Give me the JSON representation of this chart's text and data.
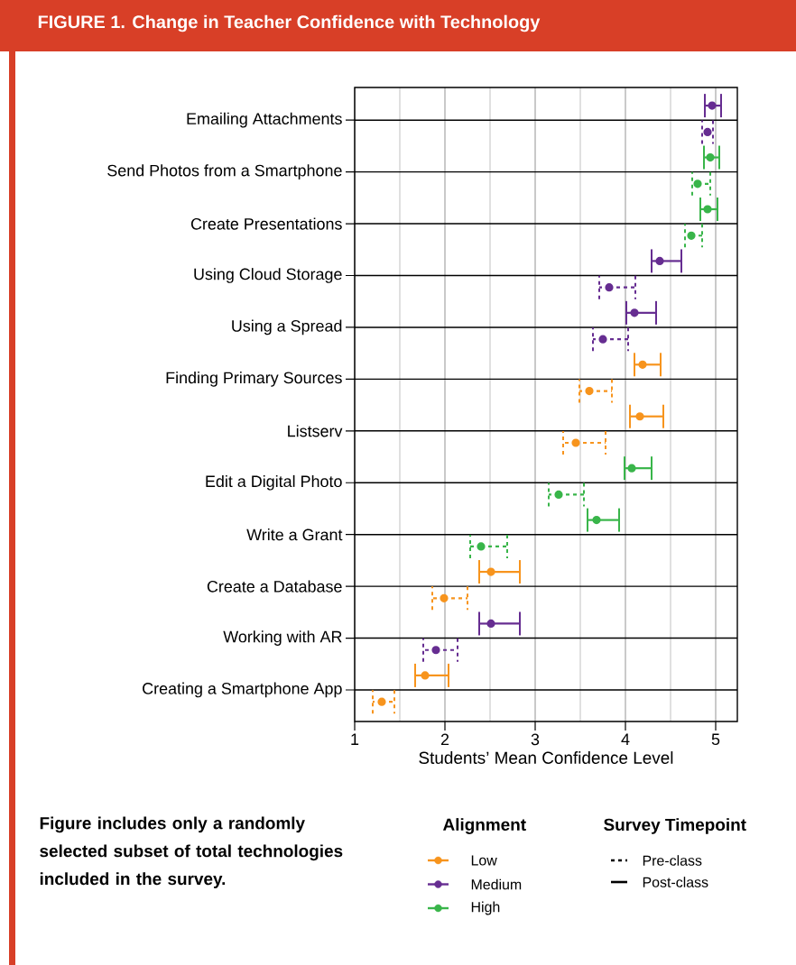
{
  "chart_data": {
    "type": "scatter",
    "orientation": "horizontal",
    "title": "FIGURE 1. Change in Teacher Confidence with Technology",
    "xlabel": "Students’ Mean Confidence Level",
    "categories": [
      "Emailing Attachments",
      "Send Photos from a Smartphone",
      "Create Presentations",
      "Using Cloud Storage",
      "Using a Spread",
      "Finding Primary Sources",
      "Listserv",
      "Edit a Digital Photo",
      "Write a Grant",
      "Create a Database",
      "Working with AR",
      "Creating a Smartphone App"
    ],
    "xlim": [
      1,
      5.24
    ],
    "xticks": [
      1,
      2,
      3,
      4,
      5
    ],
    "grid": true,
    "marker": "circle",
    "legend": "bottom",
    "legend_title": "Alignment",
    "series": [
      {
        "name": "Low",
        "color": "#f7941d",
        "line_style": "solid",
        "values": [
          null,
          null,
          null,
          null,
          null,
          4.19,
          4.16,
          null,
          null,
          2.51,
          null,
          1.78
        ],
        "errors": [
          null,
          null,
          null,
          null,
          null,
          [
            4.1,
            4.39
          ],
          [
            4.05,
            4.42
          ],
          null,
          null,
          [
            2.38,
            2.83
          ],
          null,
          [
            1.67,
            2.04
          ]
        ]
      },
      {
        "name": "Medium",
        "color": "#662d91",
        "line_style": "solid",
        "values": [
          4.96,
          null,
          null,
          4.38,
          4.1,
          null,
          null,
          null,
          null,
          null,
          2.51,
          null
        ],
        "errors": [
          [
            4.88,
            5.06
          ],
          null,
          null,
          [
            4.29,
            4.62
          ],
          [
            4.01,
            4.34
          ],
          null,
          null,
          null,
          null,
          null,
          [
            2.38,
            2.83
          ],
          null
        ]
      },
      {
        "name": "High",
        "color": "#39b54a",
        "line_style": "solid",
        "values": [
          null,
          4.94,
          4.91,
          null,
          null,
          null,
          null,
          4.07,
          3.68,
          null,
          null,
          null
        ],
        "errors": [
          null,
          [
            4.87,
            5.04
          ],
          [
            4.83,
            5.02
          ],
          null,
          null,
          null,
          null,
          [
            3.99,
            4.29
          ],
          [
            3.58,
            3.93
          ],
          null,
          null,
          null
        ]
      },
      {
        "color": "#f7941d",
        "line_style": "dashed",
        "values": [
          null,
          null,
          null,
          null,
          null,
          3.6,
          3.45,
          null,
          null,
          1.99,
          null,
          1.3
        ],
        "errors": [
          null,
          null,
          null,
          null,
          null,
          [
            3.49,
            3.85
          ],
          [
            3.31,
            3.78
          ],
          null,
          null,
          [
            1.86,
            2.25
          ],
          null,
          [
            1.2,
            1.44
          ]
        ]
      },
      {
        "color": "#662d91",
        "line_style": "dashed",
        "values": [
          4.91,
          null,
          null,
          3.82,
          3.75,
          null,
          null,
          null,
          null,
          null,
          1.9,
          null
        ],
        "errors": [
          [
            4.85,
            4.97
          ],
          null,
          null,
          [
            3.71,
            4.11
          ],
          [
            3.64,
            4.03
          ],
          null,
          null,
          null,
          null,
          null,
          [
            1.76,
            2.14
          ],
          null
        ]
      },
      {
        "color": "#39b54a",
        "line_style": "dashed",
        "values": [
          null,
          4.8,
          4.73,
          null,
          null,
          null,
          null,
          3.26,
          2.4,
          null,
          null,
          null
        ],
        "errors": [
          null,
          [
            4.74,
            4.94
          ],
          [
            4.66,
            4.85
          ],
          null,
          null,
          null,
          null,
          [
            3.15,
            3.54
          ],
          [
            2.28,
            2.69
          ],
          null,
          null,
          null
        ]
      }
    ],
    "annotations": [
      "Figure includes only a randomly selected subset of total technologies included in the survey.",
      "Survey Timepoint",
      "Pre-class",
      "Post-class"
    ]
  }
}
